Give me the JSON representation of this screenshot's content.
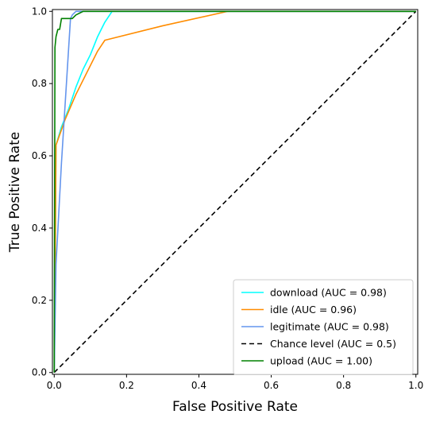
{
  "chart_data": {
    "type": "line",
    "title": "",
    "xlabel": "False Positive Rate",
    "ylabel": "True Positive Rate",
    "xlim": [
      -0.005,
      1.005
    ],
    "ylim": [
      -0.005,
      1.005
    ],
    "xticks": [
      0.0,
      0.2,
      0.4,
      0.6,
      0.8,
      1.0
    ],
    "yticks": [
      0.0,
      0.2,
      0.4,
      0.6,
      0.8,
      1.0
    ],
    "xtick_labels": [
      "0.0",
      "0.2",
      "0.4",
      "0.6",
      "0.8",
      "1.0"
    ],
    "ytick_labels": [
      "0.0",
      "0.2",
      "0.4",
      "0.6",
      "0.8",
      "1.0"
    ],
    "grid": false,
    "legend_position": "bottom-right",
    "series": [
      {
        "name": "download (AUC = 0.98)",
        "color": "#00ffff",
        "style": "solid",
        "points": [
          [
            0,
            0
          ],
          [
            0.003,
            0.35
          ],
          [
            0.005,
            0.63
          ],
          [
            0.02,
            0.68
          ],
          [
            0.04,
            0.73
          ],
          [
            0.06,
            0.79
          ],
          [
            0.08,
            0.84
          ],
          [
            0.1,
            0.88
          ],
          [
            0.12,
            0.93
          ],
          [
            0.14,
            0.97
          ],
          [
            0.16,
            1.0
          ],
          [
            1.0,
            1.0
          ]
        ]
      },
      {
        "name": "idle (AUC = 0.96)",
        "color": "#ff8c00",
        "style": "solid",
        "points": [
          [
            0,
            0
          ],
          [
            0.003,
            0.35
          ],
          [
            0.005,
            0.63
          ],
          [
            0.03,
            0.7
          ],
          [
            0.06,
            0.77
          ],
          [
            0.09,
            0.83
          ],
          [
            0.12,
            0.89
          ],
          [
            0.14,
            0.92
          ],
          [
            0.3,
            0.96
          ],
          [
            0.48,
            1.0
          ],
          [
            1.0,
            1.0
          ]
        ]
      },
      {
        "name": "legitimate (AUC = 0.98)",
        "color": "#6495ed",
        "style": "solid",
        "points": [
          [
            0,
            0
          ],
          [
            0.005,
            0.3
          ],
          [
            0.02,
            0.58
          ],
          [
            0.035,
            0.82
          ],
          [
            0.045,
            0.98
          ],
          [
            0.05,
            0.99
          ],
          [
            0.06,
            1.0
          ],
          [
            1.0,
            1.0
          ]
        ]
      },
      {
        "name": "Chance level (AUC = 0.5)",
        "color": "#000000",
        "style": "dashed",
        "points": [
          [
            0,
            0
          ],
          [
            1,
            1
          ]
        ]
      },
      {
        "name": "upload (AUC = 1.00)",
        "color": "#008000",
        "style": "solid",
        "points": [
          [
            0,
            0
          ],
          [
            0.002,
            0.9
          ],
          [
            0.005,
            0.93
          ],
          [
            0.01,
            0.95
          ],
          [
            0.015,
            0.95
          ],
          [
            0.02,
            0.98
          ],
          [
            0.05,
            0.98
          ],
          [
            0.06,
            0.99
          ],
          [
            0.08,
            1.0
          ],
          [
            1.0,
            1.0
          ]
        ]
      }
    ]
  }
}
